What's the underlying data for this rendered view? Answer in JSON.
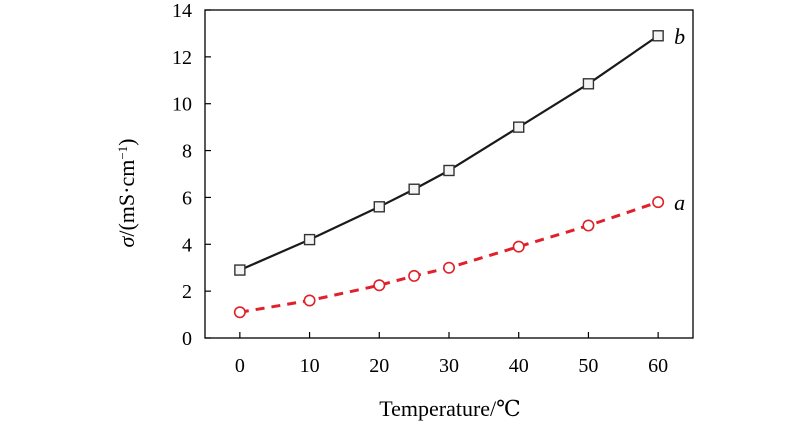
{
  "chart_data": {
    "type": "line",
    "title": "",
    "xlabel": "Temperature/℃",
    "ylabel_symbol": "σ",
    "ylabel_rest": "/(mS·cm",
    "ylabel_exp": "−1",
    "ylabel_close": ")",
    "xlim": [
      -5,
      65
    ],
    "ylim": [
      0,
      14
    ],
    "xticks": [
      0,
      10,
      20,
      30,
      40,
      50,
      60
    ],
    "yticks": [
      0,
      2,
      4,
      6,
      8,
      10,
      12,
      14
    ],
    "grid": false,
    "series": [
      {
        "name": "b",
        "marker": "square",
        "line_style": "solid",
        "color": "#1a1a1a",
        "marker_color": "#333333",
        "x": [
          0,
          10,
          20,
          25,
          30,
          40,
          50,
          60
        ],
        "values": [
          2.9,
          4.2,
          5.6,
          6.35,
          7.15,
          9.0,
          10.85,
          12.9
        ]
      },
      {
        "name": "a",
        "marker": "circle",
        "line_style": "dashed",
        "color": "#e0202a",
        "marker_color": "#e0202a",
        "x": [
          0,
          10,
          20,
          25,
          30,
          40,
          50,
          60
        ],
        "values": [
          1.1,
          1.6,
          2.25,
          2.65,
          3.0,
          3.9,
          4.8,
          5.8
        ]
      }
    ]
  }
}
